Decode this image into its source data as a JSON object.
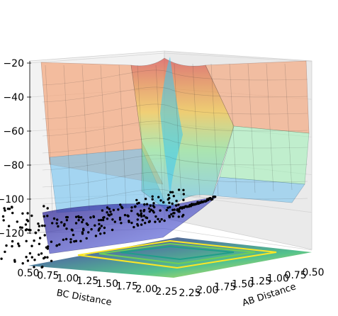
{
  "chart_data": {
    "type": "surface",
    "title": "",
    "xlabel": "AB Distance",
    "ylabel": "BC Distance",
    "zlabel": "",
    "x_ticks": [
      "0.50",
      "0.75",
      "1.00",
      "1.25",
      "1.50",
      "1.75",
      "2.00",
      "2.25"
    ],
    "y_ticks": [
      "0.50",
      "0.75",
      "1.00",
      "1.25",
      "1.50",
      "1.75",
      "2.00",
      "2.25"
    ],
    "z_ticks": [
      "−20",
      "−40",
      "−60",
      "−80",
      "−100",
      "−120"
    ],
    "zlim": [
      -130,
      -20
    ],
    "surface": {
      "colormap": "jet",
      "alpha": 0.5,
      "description_values": {
        "plateau_energy": -80,
        "ridge_max_energy": -22,
        "barrier_energy": -100,
        "valley_min_energy": -130
      }
    },
    "contour": {
      "colormap": "viridis",
      "placement": "floor"
    },
    "trajectory_points_color": "#000000",
    "grid": true
  }
}
